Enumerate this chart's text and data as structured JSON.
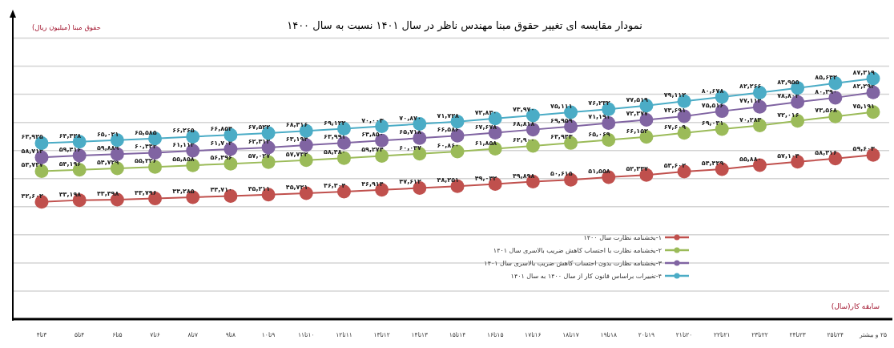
{
  "chart_data": {
    "type": "line",
    "title": "نمودار مقایسه ای تغییر حقوق مبنا مهندس ناظر در سال ۱۴۰۱ نسبت به سال ۱۴۰۰",
    "annotations": [
      "حقوق مبنا (میلیون ریال)"
    ],
    "xlabel": "سابقه کار(سال)",
    "categories": [
      "۳تا۴",
      "۴تا۵",
      "۵تا۶",
      "۶تا۷",
      "۷تا۸",
      "۸تا۹",
      "۹تا۱۰",
      "۱۰تا۱۱",
      "۱۱تا۱۲",
      "۱۲تا۱۳",
      "۱۳تا۱۴",
      "۱۴تا۱۵",
      "۱۵تا۱۶",
      "۱۶تا۱۷",
      "۱۷تا۱۸",
      "۱۸تا۱۹",
      "۱۹تا۲۰",
      "۲۰تا۲۱",
      "۲۱تا۲۲",
      "۲۲تا۲۳",
      "۲۳تا۲۴",
      "۲۴تا۲۵",
      "۲۵ و بیشتر"
    ],
    "grid": "y",
    "marker": "circle",
    "line_style": "solid",
    "legend": "bottom right",
    "series": [
      {
        "name": "۱-بخشنامه نظارت سال ۱۴۰۰",
        "color": "#c0504d",
        "values": [
          42602,
          43198,
          43398,
          43796,
          44285,
          44710,
          45211,
          45721,
          46304,
          46914,
          47612,
          48251,
          49042,
          49898,
          50615,
          51558,
          52347,
          53602,
          54429,
          55880,
          57104,
          58316,
          59603
        ],
        "value_labels": [
          "۴۲,۶۰۲",
          "۴۳,۱۹۸",
          "۴۳,۳۹۸",
          "۴۳,۷۹۶",
          "۴۴,۲۸۵",
          "۴۴,۷۱۰",
          "۴۵,۲۱۱",
          "۴۵,۷۲۱",
          "۴۶,۳۰۴",
          "۴۶,۹۱۴",
          "۴۷,۶۱۲",
          "۴۸,۲۵۱",
          "۴۹,۰۴۲",
          "۴۹,۸۹۸",
          "۵۰,۶۱۵",
          "۵۱,۵۵۸",
          "۵۲,۳۴۷",
          "۵۳,۶۰۲",
          "۵۴,۴۲۹",
          "۵۵,۸۸۰",
          "۵۷,۱۰۴",
          "۵۸,۳۱۶",
          "۵۹,۶۰۳"
        ]
      },
      {
        "name": "۲-بخشنامه نظارت با احتساب کاهش ضریب بالاسری سال ۱۴۰۱",
        "color": "#9bbb59",
        "values": [
          53737,
          54196,
          54729,
          55226,
          55858,
          56396,
          57027,
          57732,
          58480,
          59274,
          60047,
          60860,
          61858,
          62900,
          63943,
          65069,
          66152,
          67609,
          69031,
          70283,
          72016,
          73568,
          75191
        ],
        "value_labels": [
          "۵۳,۷۳۷",
          "۵۴,۱۹۶",
          "۵۴,۷۲۹",
          "۵۵,۲۲۶",
          "۵۵,۸۵۸",
          "۵۶,۳۹۶",
          "۵۷,۰۲۷",
          "۵۷,۷۳۲",
          "۵۸,۴۸۰",
          "۵۹,۲۷۴",
          "۶۰,۰۴۷",
          "۶۰,۸۶۰",
          "۶۱,۸۵۸",
          "۶۲,۹۰۰",
          "۶۳,۹۴۳",
          "۶۵,۰۶۹",
          "۶۶,۱۵۲",
          "۶۷,۶۰۹",
          "۶۹,۰۳۱",
          "۷۰,۲۸۳",
          "۷۲,۰۱۶",
          "۷۳,۵۶۸",
          "۷۵,۱۹۱"
        ]
      },
      {
        "name": "۳-بخشنامه نظارت بدون احتساب کاهش ضریب بالاسری سال ۱۴۰۱",
        "color": "#8064a2",
        "values": [
          58714,
          59416,
          59889,
          60433,
          61113,
          61703,
          62313,
          63194,
          63991,
          64850,
          65718,
          66586,
          67678,
          68818,
          69959,
          71191,
          72377,
          73691,
          75516,
          77114,
          78804,
          80390,
          82294
        ],
        "value_labels": [
          "۵۸,۷۱۴",
          "۵۹,۴۱۶",
          "۵۹,۸۸۹",
          "۶۰,۴۳۳",
          "۶۱,۱۱۳",
          "۶۱,۷۰۳",
          "۶۲,۳۱۳",
          "۶۳,۱۹۴",
          "۶۳,۹۹۱",
          "۶۴,۸۵۰",
          "۶۵,۷۱۸",
          "۶۶,۵۸۶",
          "۶۷,۶۷۸",
          "۶۸,۸۱۸",
          "۶۹,۹۵۹",
          "۷۱,۱۹۱",
          "۷۲,۳۷۷",
          "۷۳,۶۹۱",
          "۷۵,۵۱۶",
          "۷۷,۱۱۴",
          "۷۸,۸۰۴",
          "۸۰,۳۹۰",
          "۸۲,۲۹۴"
        ]
      },
      {
        "name": "۴-تغییرات براساس قانون کار از سال ۱۴۰۰ به سال ۱۴۰۱",
        "color": "#4bacc6",
        "values": [
          63925,
          64428,
          65021,
          65585,
          66265,
          66854,
          67522,
          68316,
          69122,
          70003,
          70870,
          71728,
          72830,
          73970,
          75111,
          76232,
          77519,
          79112,
          80678,
          82266,
          83955,
          85642,
          87319
        ],
        "value_labels": [
          "۶۳,۹۲۵",
          "۶۴,۴۲۸",
          "۶۵,۰۲۱",
          "۶۵,۵۸۵",
          "۶۶,۲۶۵",
          "۶۶,۸۵۴",
          "۶۷,۵۲۲",
          "۶۸,۳۱۶",
          "۶۹,۱۲۲",
          "۷۰,۰۰۳",
          "۷۰,۸۷۰",
          "۷۱,۷۲۸",
          "۷۲,۸۳۰",
          "۷۳,۹۷۰",
          "۷۵,۱۱۱",
          "۷۶,۲۳۲",
          "۷۷,۵۱۹",
          "۷۹,۱۱۲",
          "۸۰,۶۷۸",
          "۸۲,۲۶۶",
          "۸۳,۹۵۵",
          "۸۵,۶۴۲",
          "۸۷,۳۱۹"
        ]
      }
    ]
  }
}
